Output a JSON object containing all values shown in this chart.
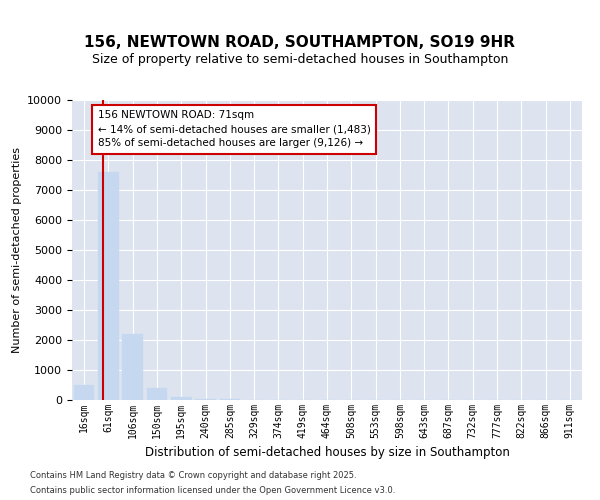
{
  "title": "156, NEWTOWN ROAD, SOUTHAMPTON, SO19 9HR",
  "subtitle": "Size of property relative to semi-detached houses in Southampton",
  "xlabel": "Distribution of semi-detached houses by size in Southampton",
  "ylabel": "Number of semi-detached properties",
  "categories": [
    "16sqm",
    "61sqm",
    "106sqm",
    "150sqm",
    "195sqm",
    "240sqm",
    "285sqm",
    "329sqm",
    "374sqm",
    "419sqm",
    "464sqm",
    "508sqm",
    "553sqm",
    "598sqm",
    "643sqm",
    "687sqm",
    "732sqm",
    "777sqm",
    "822sqm",
    "866sqm",
    "911sqm"
  ],
  "values": [
    500,
    7600,
    2200,
    400,
    100,
    50,
    20,
    10,
    5,
    3,
    2,
    1,
    1,
    1,
    1,
    0,
    0,
    0,
    0,
    0,
    0
  ],
  "bar_color": "#c5d8f0",
  "bar_edgecolor": "#c5d8f0",
  "annotation_title": "156 NEWTOWN ROAD: 71sqm",
  "annotation_line1": "← 14% of semi-detached houses are smaller (1,483)",
  "annotation_line2": "85% of semi-detached houses are larger (9,126) →",
  "red_color": "#cc0000",
  "ylim": [
    0,
    10000
  ],
  "yticks": [
    0,
    1000,
    2000,
    3000,
    4000,
    5000,
    6000,
    7000,
    8000,
    9000,
    10000
  ],
  "bg_color": "#dde4f0",
  "footnote1": "Contains HM Land Registry data © Crown copyright and database right 2025.",
  "footnote2": "Contains public sector information licensed under the Open Government Licence v3.0."
}
